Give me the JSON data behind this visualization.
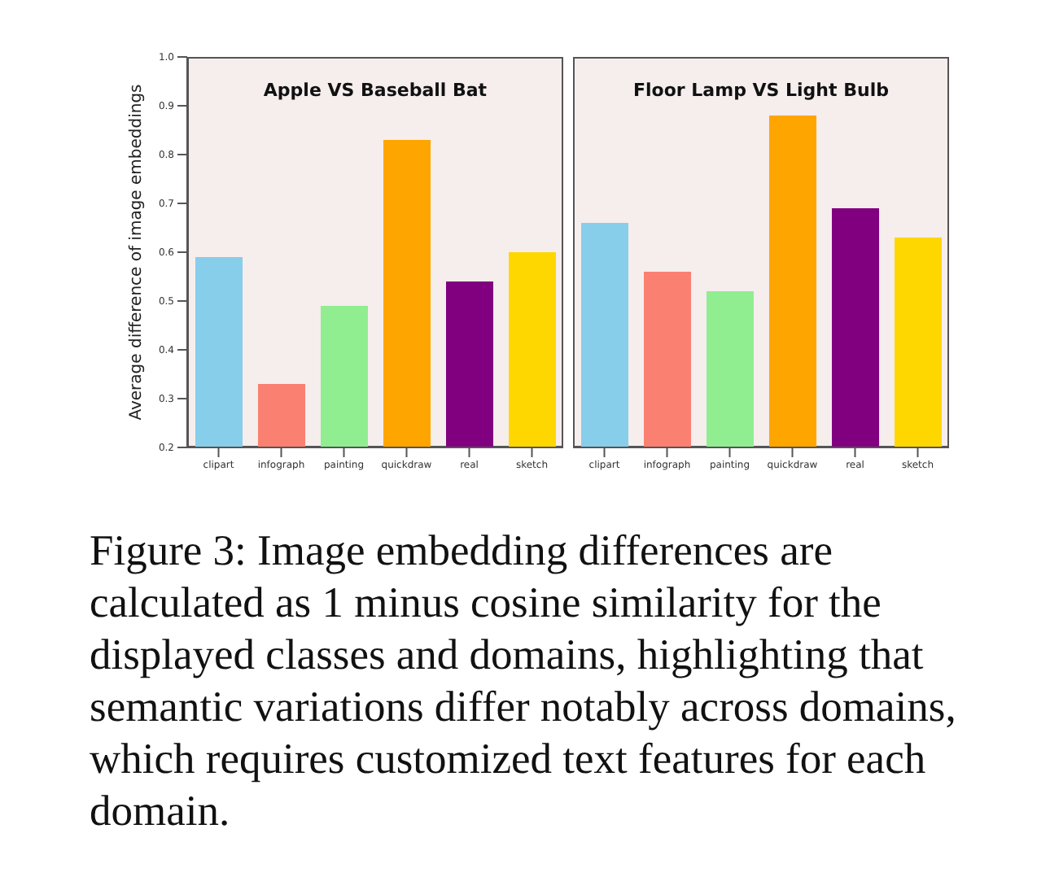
{
  "chart_data": [
    {
      "type": "bar",
      "title": "Apple VS Baseball Bat",
      "ylabel": "Average difference of image embeddings",
      "categories": [
        "clipart",
        "infograph",
        "painting",
        "quickdraw",
        "real",
        "sketch"
      ],
      "values": [
        0.59,
        0.33,
        0.49,
        0.83,
        0.54,
        0.6
      ],
      "colors": [
        "#87ceeb",
        "#fa8072",
        "#90ee90",
        "#ffa500",
        "#800080",
        "#ffd700"
      ],
      "ylim": [
        0.2,
        1.0
      ],
      "yticks": [
        0.2,
        0.3,
        0.4,
        0.5,
        0.6,
        0.7,
        0.8,
        0.9,
        {
          "value": 1.0,
          "label": "1.0"
        }
      ],
      "annotations": [
        "Figure 3: Image embedding differences are calculated as 1 minus cosine similarity for the displayed classes and domains, highlighting that semantic variations differ notably across domains, which requires customized text features for each domain."
      ]
    },
    {
      "type": "bar",
      "title": "Floor Lamp VS Light Bulb",
      "categories": [
        "clipart",
        "infograph",
        "painting",
        "quickdraw",
        "real",
        "sketch"
      ],
      "values": [
        0.66,
        0.56,
        0.52,
        0.88,
        0.69,
        0.63
      ],
      "colors": [
        "#87ceeb",
        "#fa8072",
        "#90ee90",
        "#ffa500",
        "#800080",
        "#ffd700"
      ],
      "ylim": [
        0.2,
        1.0
      ],
      "yticks": [
        0.2,
        0.3,
        0.4,
        0.5,
        0.6,
        0.7,
        0.8,
        0.9,
        1.0
      ],
      "tick_labels": "x"
    }
  ]
}
